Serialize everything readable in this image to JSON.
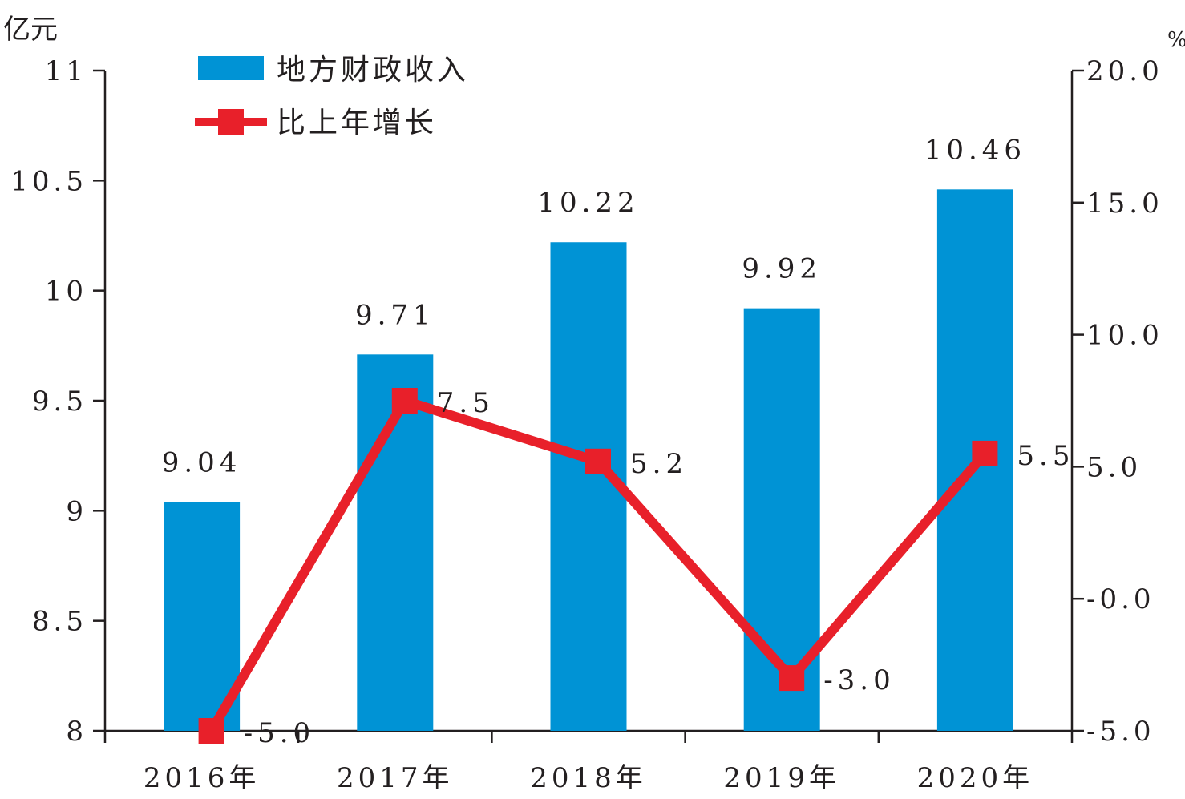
{
  "chart_data": {
    "type": "bar+line",
    "categories": [
      "2016年",
      "2017年",
      "2018年",
      "2019年",
      "2020年"
    ],
    "series": [
      {
        "name": "地方财政收入",
        "type": "bar",
        "axis": "left",
        "values": [
          9.04,
          9.71,
          10.22,
          9.92,
          10.46
        ],
        "labels": [
          "9.04",
          "9.71",
          "10.22",
          "9.92",
          "10.46"
        ],
        "color": "#0093d5"
      },
      {
        "name": "比上年增长",
        "type": "line",
        "axis": "right",
        "values": [
          -5.0,
          7.5,
          5.2,
          -3.0,
          5.5
        ],
        "labels": [
          "-5.0",
          "7.5",
          "5.2",
          "-3.0",
          "5.5"
        ],
        "color": "#e8202a"
      }
    ],
    "y_left": {
      "unit": "亿元",
      "range": [
        8,
        11
      ],
      "ticks": [
        8,
        8.5,
        9,
        9.5,
        10,
        10.5,
        11
      ],
      "tick_labels": [
        "8",
        "8.5",
        "9",
        "9.5",
        "10",
        "10.5",
        "11"
      ]
    },
    "y_right": {
      "unit": "%",
      "range": [
        -5,
        20
      ],
      "ticks": [
        -5,
        0,
        5,
        10,
        15,
        20
      ],
      "tick_labels": [
        "-5.0",
        "-0.0",
        "5.0",
        "10.0",
        "15.0",
        "20.0"
      ]
    },
    "legend": "top-left",
    "grid": false
  }
}
